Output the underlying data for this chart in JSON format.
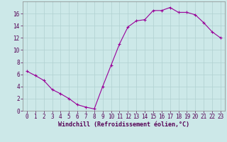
{
  "x": [
    0,
    1,
    2,
    3,
    4,
    5,
    6,
    7,
    8,
    9,
    10,
    11,
    12,
    13,
    14,
    15,
    16,
    17,
    18,
    19,
    20,
    21,
    22,
    23
  ],
  "y": [
    6.5,
    5.8,
    5.0,
    3.5,
    2.8,
    2.0,
    1.0,
    0.6,
    0.3,
    4.0,
    7.5,
    11.0,
    13.8,
    14.8,
    15.0,
    16.5,
    16.5,
    17.0,
    16.2,
    16.2,
    15.8,
    14.5,
    13.0,
    12.0
  ],
  "line_color": "#990099",
  "marker": "+",
  "marker_size": 3,
  "background_color": "#cce8e8",
  "grid_color": "#b0d0d0",
  "xlabel": "Windchill (Refroidissement éolien,°C)",
  "xlabel_fontsize": 6.0,
  "tick_fontsize": 5.5,
  "ylim": [
    0,
    18
  ],
  "xlim": [
    -0.5,
    23.5
  ],
  "yticks": [
    0,
    2,
    4,
    6,
    8,
    10,
    12,
    14,
    16
  ],
  "xticks": [
    0,
    1,
    2,
    3,
    4,
    5,
    6,
    7,
    8,
    9,
    10,
    11,
    12,
    13,
    14,
    15,
    16,
    17,
    18,
    19,
    20,
    21,
    22,
    23
  ],
  "spine_color": "#888888"
}
